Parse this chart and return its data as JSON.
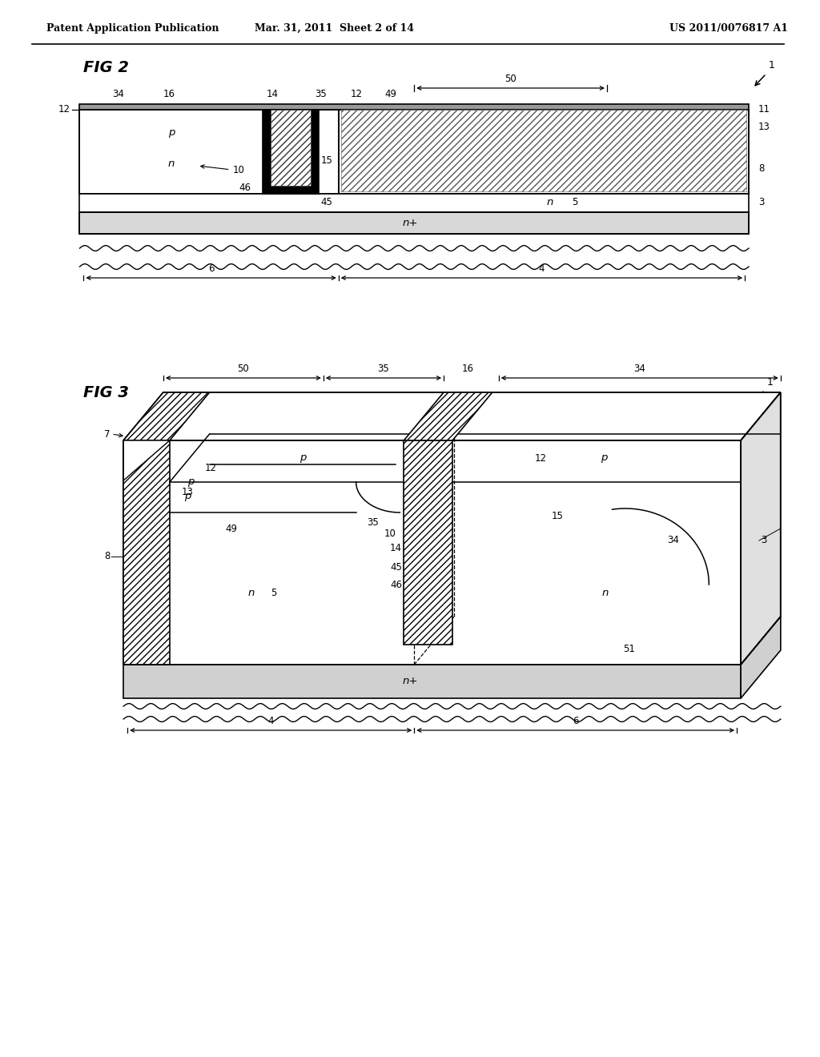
{
  "header_left": "Patent Application Publication",
  "header_mid": "Mar. 31, 2011  Sheet 2 of 14",
  "header_right": "US 2011/0076817 A1",
  "background": "#ffffff"
}
